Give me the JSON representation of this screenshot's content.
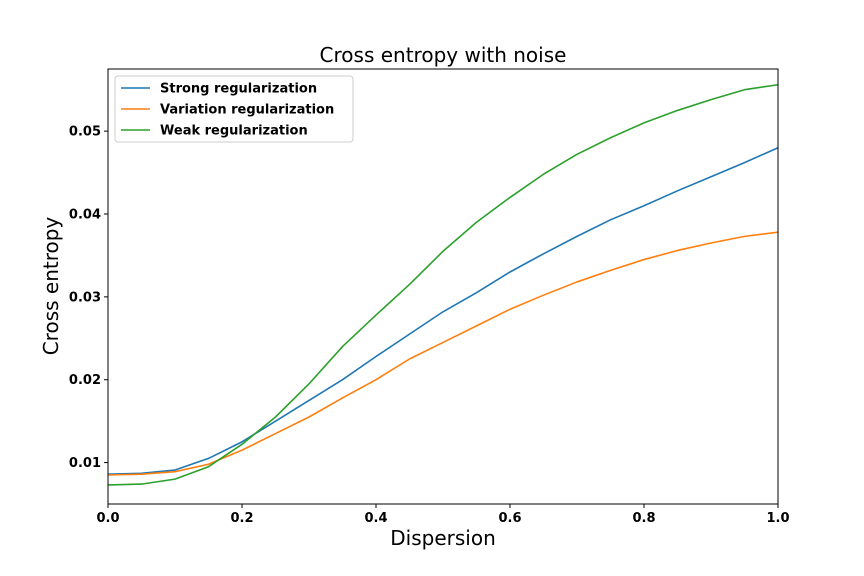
{
  "chart_data": {
    "type": "line",
    "title": "Cross entropy with noise",
    "xlabel": "Dispersion",
    "ylabel": "Cross entropy",
    "xlim": [
      0.0,
      1.0
    ],
    "ylim": [
      0.005,
      0.0575
    ],
    "xticks": [
      {
        "value": 0.0,
        "label": "0.0"
      },
      {
        "value": 0.2,
        "label": "0.2"
      },
      {
        "value": 0.4,
        "label": "0.4"
      },
      {
        "value": 0.6,
        "label": "0.6"
      },
      {
        "value": 0.8,
        "label": "0.8"
      },
      {
        "value": 1.0,
        "label": "1.0"
      }
    ],
    "yticks": [
      {
        "value": 0.01,
        "label": "0.01"
      },
      {
        "value": 0.02,
        "label": "0.02"
      },
      {
        "value": 0.03,
        "label": "0.03"
      },
      {
        "value": 0.04,
        "label": "0.04"
      },
      {
        "value": 0.05,
        "label": "0.05"
      }
    ],
    "grid": false,
    "legend_position": "upper left",
    "x": [
      0.0,
      0.05,
      0.1,
      0.15,
      0.2,
      0.25,
      0.3,
      0.35,
      0.4,
      0.45,
      0.5,
      0.55,
      0.6,
      0.65,
      0.7,
      0.75,
      0.8,
      0.85,
      0.9,
      0.95,
      1.0
    ],
    "series": [
      {
        "name": "Strong regularization",
        "color": "#1f77b4",
        "values": [
          0.0086,
          0.0087,
          0.0091,
          0.0105,
          0.0125,
          0.015,
          0.0175,
          0.02,
          0.0228,
          0.0255,
          0.0282,
          0.0305,
          0.033,
          0.0352,
          0.0373,
          0.0393,
          0.041,
          0.0428,
          0.0445,
          0.0462,
          0.048
        ]
      },
      {
        "name": "Variation regularization",
        "color": "#ff7f0e",
        "values": [
          0.0085,
          0.0086,
          0.0089,
          0.0098,
          0.0115,
          0.0135,
          0.0155,
          0.0178,
          0.02,
          0.0225,
          0.0245,
          0.0265,
          0.0285,
          0.0302,
          0.0318,
          0.0332,
          0.0345,
          0.0356,
          0.0365,
          0.0373,
          0.0378
        ]
      },
      {
        "name": "Weak regularization",
        "color": "#2ca02c",
        "values": [
          0.0073,
          0.0074,
          0.008,
          0.0095,
          0.0122,
          0.0155,
          0.0195,
          0.024,
          0.0278,
          0.0315,
          0.0355,
          0.039,
          0.042,
          0.0448,
          0.0472,
          0.0492,
          0.051,
          0.0525,
          0.0538,
          0.055,
          0.0556
        ]
      }
    ]
  }
}
